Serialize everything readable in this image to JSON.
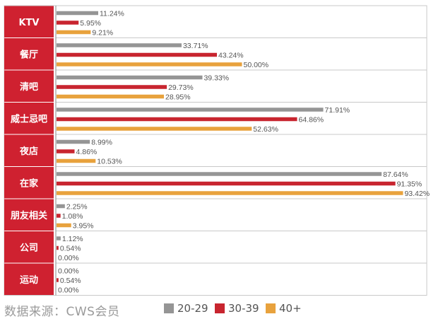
{
  "source": "数据来源：CWS会员",
  "colors": {
    "label_panel": "#cf2130",
    "axis_line": "#8a8a8a",
    "text": "#555555",
    "grid_border": "#c9c9c9"
  },
  "chart_data": {
    "type": "bar",
    "orientation": "horizontal",
    "categories": [
      "KTV",
      "餐厅",
      "清吧",
      "威士忌吧",
      "夜店",
      "在家",
      "朋友相关",
      "公司",
      "运动"
    ],
    "series": [
      {
        "name": "20-29",
        "color": "#959595",
        "values": [
          11.24,
          33.71,
          39.33,
          71.91,
          8.99,
          87.64,
          2.25,
          1.12,
          0.0
        ],
        "labels": [
          "11.24%",
          "33.71%",
          "39.33%",
          "71.91%",
          "8.99%",
          "87.64%",
          "2.25%",
          "1.12%",
          "0.00%"
        ]
      },
      {
        "name": "30-39",
        "color": "#c8252f",
        "values": [
          5.95,
          43.24,
          29.73,
          64.86,
          4.86,
          91.35,
          1.08,
          0.54,
          0.54
        ],
        "labels": [
          "5.95%",
          "43.24%",
          "29.73%",
          "64.86%",
          "4.86%",
          "91.35%",
          "1.08%",
          "0.54%",
          "0.54%"
        ]
      },
      {
        "name": "40+",
        "color": "#e8a23d",
        "values": [
          9.21,
          50.0,
          28.95,
          52.63,
          10.53,
          93.42,
          3.95,
          0.0,
          0.0
        ],
        "labels": [
          "9.21%",
          "50.00%",
          "28.95%",
          "52.63%",
          "10.53%",
          "93.42%",
          "3.95%",
          "0.00%",
          "0.00%"
        ]
      }
    ],
    "xlim": [
      0,
      100
    ],
    "legend_position": "bottom-right"
  }
}
